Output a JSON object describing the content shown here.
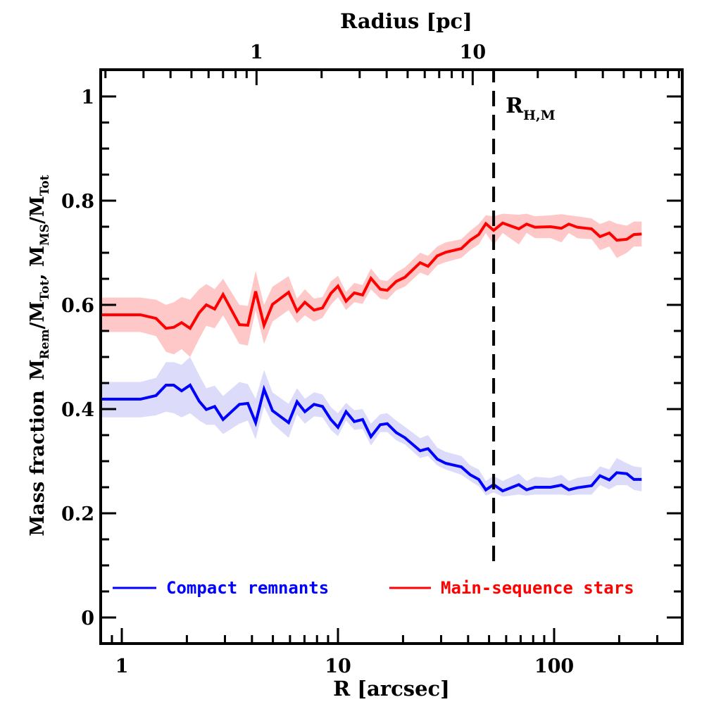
{
  "chart_data": {
    "type": "line",
    "title": "",
    "xlabel": "R [arcsec]",
    "x2label": "Radius [pc]",
    "ylabel_parts": [
      "Mass fraction",
      "M",
      "Rem",
      "/M",
      "Tot",
      ",  M",
      "MS",
      "/M",
      "Tot"
    ],
    "ylabel": "Mass fraction  MRem/MTot,  MMS/MTot",
    "xscale": "log",
    "xlim": [
      0.81,
      450
    ],
    "ylim": [
      -0.05,
      1.05
    ],
    "x_ticks": [
      1,
      10,
      100
    ],
    "x_tick_labels": [
      "1",
      "10",
      "100"
    ],
    "x2_arcsec_per_pc": 4.2,
    "x2_ticks": [
      1,
      10
    ],
    "x2_tick_labels": [
      "1",
      "10"
    ],
    "y_ticks": [
      0,
      0.2,
      0.4,
      0.6,
      0.8,
      1
    ],
    "y_tick_labels": [
      "0",
      "0.2",
      "0.4",
      "0.6",
      "0.8",
      "1"
    ],
    "y_minor_step": 0.05,
    "grid": false,
    "legend_position": "bottom",
    "annotations": [
      {
        "text": "R",
        "sub": "H,M",
        "x": 52.5,
        "type": "vertical-dashed-line",
        "y_range": [
          0.1,
          1.05
        ]
      }
    ],
    "x": [
      0.81,
      1.22,
      1.44,
      1.6,
      1.74,
      1.89,
      2.07,
      2.28,
      2.46,
      2.69,
      2.94,
      3.5,
      3.83,
      4.16,
      4.55,
      4.98,
      5.91,
      6.47,
      7.03,
      7.75,
      8.48,
      9.27,
      10.0,
      10.9,
      11.9,
      13.0,
      14.2,
      15.7,
      16.9,
      18.6,
      20.4,
      24.0,
      26.1,
      28.8,
      31.5,
      37.2,
      40.9,
      44.8,
      48.3,
      52.5,
      57.8,
      68.7,
      74.6,
      81.6,
      96.3,
      108,
      117,
      128,
      149,
      163,
      180,
      195,
      217,
      234,
      254
    ],
    "series": [
      {
        "name": "Compact remnants",
        "color": "#0000ff",
        "band_color": "#dcdcfa",
        "values": [
          0.419,
          0.419,
          0.426,
          0.446,
          0.446,
          0.435,
          0.446,
          0.415,
          0.399,
          0.405,
          0.38,
          0.409,
          0.411,
          0.374,
          0.438,
          0.397,
          0.374,
          0.414,
          0.395,
          0.409,
          0.405,
          0.38,
          0.365,
          0.395,
          0.376,
          0.38,
          0.347,
          0.37,
          0.372,
          0.355,
          0.345,
          0.32,
          0.324,
          0.304,
          0.296,
          0.289,
          0.274,
          0.265,
          0.245,
          0.255,
          0.243,
          0.255,
          0.245,
          0.25,
          0.25,
          0.254,
          0.245,
          0.249,
          0.253,
          0.272,
          0.264,
          0.278,
          0.276,
          0.265,
          0.265
        ],
        "lower": [
          0.384,
          0.384,
          0.388,
          0.395,
          0.392,
          0.384,
          0.392,
          0.378,
          0.37,
          0.37,
          0.352,
          0.372,
          0.378,
          0.342,
          0.405,
          0.372,
          0.345,
          0.39,
          0.372,
          0.386,
          0.384,
          0.36,
          0.348,
          0.378,
          0.36,
          0.362,
          0.33,
          0.356,
          0.356,
          0.34,
          0.332,
          0.306,
          0.31,
          0.292,
          0.284,
          0.274,
          0.262,
          0.252,
          0.234,
          0.24,
          0.232,
          0.236,
          0.234,
          0.236,
          0.236,
          0.236,
          0.234,
          0.236,
          0.236,
          0.254,
          0.246,
          0.254,
          0.254,
          0.245,
          0.242
        ],
        "upper": [
          0.452,
          0.452,
          0.46,
          0.49,
          0.49,
          0.485,
          0.5,
          0.465,
          0.44,
          0.445,
          0.425,
          0.452,
          0.448,
          0.42,
          0.475,
          0.432,
          0.41,
          0.44,
          0.42,
          0.432,
          0.428,
          0.404,
          0.392,
          0.412,
          0.398,
          0.4,
          0.372,
          0.39,
          0.392,
          0.378,
          0.366,
          0.344,
          0.35,
          0.326,
          0.318,
          0.31,
          0.292,
          0.284,
          0.262,
          0.272,
          0.262,
          0.276,
          0.262,
          0.27,
          0.268,
          0.274,
          0.262,
          0.268,
          0.272,
          0.29,
          0.284,
          0.306,
          0.296,
          0.29,
          0.288
        ]
      },
      {
        "name": "Main-sequence stars",
        "color": "#ff0000",
        "band_color": "#ffc8c8",
        "values": [
          0.581,
          0.581,
          0.574,
          0.555,
          0.557,
          0.566,
          0.555,
          0.585,
          0.6,
          0.592,
          0.62,
          0.562,
          0.561,
          0.626,
          0.561,
          0.601,
          0.624,
          0.588,
          0.605,
          0.59,
          0.594,
          0.622,
          0.636,
          0.607,
          0.623,
          0.619,
          0.651,
          0.63,
          0.628,
          0.645,
          0.653,
          0.681,
          0.674,
          0.694,
          0.701,
          0.708,
          0.724,
          0.735,
          0.756,
          0.743,
          0.757,
          0.746,
          0.755,
          0.749,
          0.75,
          0.747,
          0.755,
          0.749,
          0.746,
          0.731,
          0.738,
          0.724,
          0.726,
          0.735,
          0.736
        ],
        "lower": [
          0.548,
          0.548,
          0.54,
          0.51,
          0.505,
          0.515,
          0.5,
          0.535,
          0.56,
          0.555,
          0.58,
          0.525,
          0.522,
          0.59,
          0.525,
          0.568,
          0.59,
          0.565,
          0.58,
          0.568,
          0.575,
          0.6,
          0.615,
          0.59,
          0.605,
          0.602,
          0.63,
          0.612,
          0.61,
          0.628,
          0.635,
          0.662,
          0.656,
          0.676,
          0.682,
          0.69,
          0.705,
          0.716,
          0.738,
          0.715,
          0.738,
          0.716,
          0.738,
          0.728,
          0.728,
          0.72,
          0.738,
          0.728,
          0.726,
          0.705,
          0.712,
          0.69,
          0.7,
          0.712,
          0.712
        ],
        "upper": [
          0.614,
          0.614,
          0.61,
          0.6,
          0.605,
          0.615,
          0.61,
          0.63,
          0.64,
          0.63,
          0.65,
          0.6,
          0.598,
          0.665,
          0.6,
          0.635,
          0.655,
          0.612,
          0.63,
          0.612,
          0.615,
          0.645,
          0.656,
          0.625,
          0.642,
          0.638,
          0.67,
          0.648,
          0.646,
          0.662,
          0.672,
          0.7,
          0.694,
          0.712,
          0.72,
          0.726,
          0.742,
          0.755,
          0.772,
          0.77,
          0.775,
          0.773,
          0.775,
          0.77,
          0.772,
          0.774,
          0.772,
          0.77,
          0.766,
          0.755,
          0.762,
          0.756,
          0.752,
          0.76,
          0.76
        ]
      }
    ],
    "legend": [
      {
        "label": "Compact remnants",
        "color": "#0000ff"
      },
      {
        "label": "Main-sequence stars",
        "color": "#ff0000"
      }
    ]
  }
}
